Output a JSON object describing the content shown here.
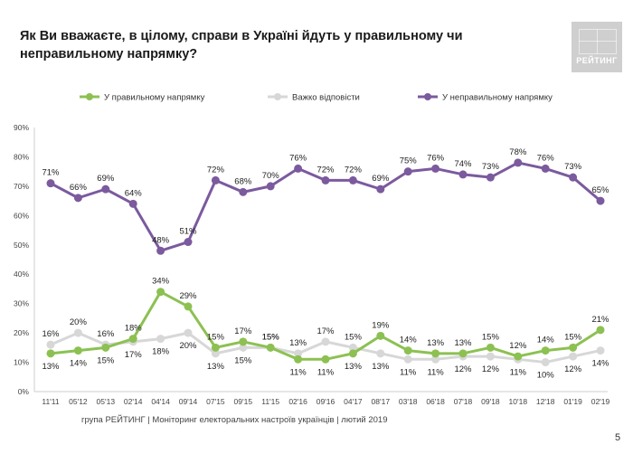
{
  "header": {
    "title": "Як Ви вважаєте, в цілому, справи в Україні йдуть у правильному чи неправильному напрямку?",
    "logo_text": "РЕЙТИНГ"
  },
  "footer": {
    "text": "група РЕЙТИНГ | Моніторинг електоральних настроїв українців | лютий 2019",
    "page_number": "5"
  },
  "chart_data": {
    "type": "line",
    "categories": [
      "11'11",
      "05'12",
      "05'13",
      "02'14",
      "04'14",
      "09'14",
      "07'15",
      "09'15",
      "11'15",
      "02'16",
      "09'16",
      "04'17",
      "08'17",
      "03'18",
      "06'18",
      "07'18",
      "09'18",
      "10'18",
      "12'18",
      "01'19",
      "02'19"
    ],
    "y_ticks": [
      "0%",
      "10%",
      "20%",
      "30%",
      "40%",
      "50%",
      "60%",
      "70%",
      "80%",
      "90%"
    ],
    "ylim": [
      0,
      90
    ],
    "legend_position": "top",
    "grid": false,
    "series": [
      {
        "name": "У правильному напрямку",
        "color": "#8cc152",
        "values": [
          13,
          14,
          15,
          18,
          34,
          29,
          15,
          17,
          15,
          11,
          11,
          13,
          19,
          14,
          13,
          13,
          15,
          12,
          14,
          15,
          21
        ],
        "labels": [
          "13%",
          "14%",
          "15%",
          "18%",
          "34%",
          "29%",
          "15%",
          "17%",
          "15%",
          "11%",
          "11%",
          "13%",
          "19%",
          "14%",
          "13%",
          "13%",
          "15%",
          "12%",
          "14%",
          "15%",
          "21%"
        ]
      },
      {
        "name": "Важко відповісти",
        "color": "#d7d7d7",
        "values": [
          16,
          20,
          16,
          17,
          18,
          20,
          13,
          15,
          15,
          13,
          17,
          15,
          13,
          11,
          11,
          12,
          12,
          11,
          10,
          12,
          14
        ],
        "labels": [
          "16%",
          "20%",
          "16%",
          "17%",
          "18%",
          "20%",
          "13%",
          "15%",
          "15%",
          "13%",
          "17%",
          "15%",
          "13%",
          "11%",
          "11%",
          "12%",
          "12%",
          "11%",
          "10%",
          "12%",
          "14%"
        ]
      },
      {
        "name": "У неправильному напрямку",
        "color": "#7b5a9e",
        "values": [
          71,
          66,
          69,
          64,
          48,
          51,
          72,
          68,
          70,
          76,
          72,
          72,
          69,
          75,
          76,
          74,
          73,
          78,
          76,
          73,
          65
        ],
        "labels": [
          "71%",
          "66%",
          "69%",
          "64%",
          "48%",
          "51%",
          "72%",
          "68%",
          "70%",
          "76%",
          "72%",
          "72%",
          "69%",
          "75%",
          "76%",
          "74%",
          "73%",
          "78%",
          "76%",
          "73%",
          "65%"
        ]
      }
    ]
  }
}
